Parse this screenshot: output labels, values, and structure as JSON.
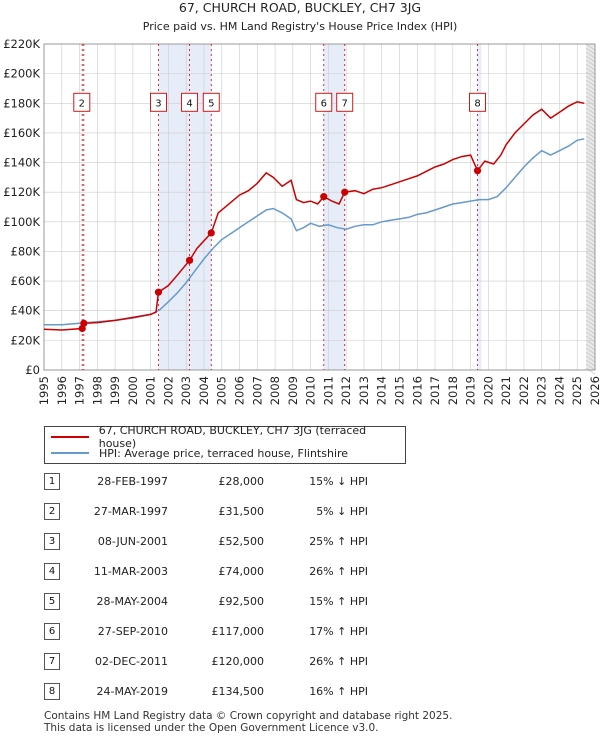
{
  "chart_data": {
    "type": "line",
    "title": "67, CHURCH ROAD, BUCKLEY, CH7 3JG",
    "subtitle": "Price paid vs. HM Land Registry's House Price Index (HPI)",
    "xlim": [
      1995,
      2026
    ],
    "ylim": [
      0,
      220000
    ],
    "y_ticks": [
      0,
      20000,
      40000,
      60000,
      80000,
      100000,
      120000,
      140000,
      160000,
      180000,
      200000,
      220000
    ],
    "y_tick_labels": [
      "£0",
      "£20K",
      "£40K",
      "£60K",
      "£80K",
      "£100K",
      "£120K",
      "£140K",
      "£160K",
      "£180K",
      "£200K",
      "£220K"
    ],
    "x_ticks": [
      1995,
      1996,
      1997,
      1998,
      1999,
      2000,
      2001,
      2002,
      2003,
      2004,
      2005,
      2006,
      2007,
      2008,
      2009,
      2010,
      2011,
      2012,
      2013,
      2014,
      2015,
      2016,
      2017,
      2018,
      2019,
      2020,
      2021,
      2022,
      2023,
      2024,
      2025,
      2026
    ],
    "series": [
      {
        "name": "67, CHURCH ROAD, BUCKLEY, CH7 3JG (terraced house)",
        "color": "#cc0000",
        "points": [
          [
            1995.0,
            27500
          ],
          [
            1996.0,
            27000
          ],
          [
            1997.15,
            28000
          ],
          [
            1997.24,
            31500
          ],
          [
            1998.0,
            32000
          ],
          [
            1999.0,
            33500
          ],
          [
            2000.0,
            35500
          ],
          [
            2001.0,
            37500
          ],
          [
            2001.3,
            39000
          ],
          [
            2001.44,
            52500
          ],
          [
            2002.0,
            57000
          ],
          [
            2002.5,
            64000
          ],
          [
            2003.19,
            74000
          ],
          [
            2003.6,
            82000
          ],
          [
            2004.41,
            92500
          ],
          [
            2004.8,
            106000
          ],
          [
            2005.5,
            113000
          ],
          [
            2006.0,
            118000
          ],
          [
            2006.5,
            121000
          ],
          [
            2007.0,
            126000
          ],
          [
            2007.5,
            133000
          ],
          [
            2007.9,
            130000
          ],
          [
            2008.4,
            124000
          ],
          [
            2008.9,
            128000
          ],
          [
            2009.2,
            115000
          ],
          [
            2009.6,
            113000
          ],
          [
            2010.0,
            114000
          ],
          [
            2010.4,
            112000
          ],
          [
            2010.74,
            117000
          ],
          [
            2011.2,
            114000
          ],
          [
            2011.6,
            112000
          ],
          [
            2011.92,
            120000
          ],
          [
            2012.5,
            121000
          ],
          [
            2013.0,
            119000
          ],
          [
            2013.5,
            122000
          ],
          [
            2014.0,
            123000
          ],
          [
            2014.5,
            125000
          ],
          [
            2015.0,
            127000
          ],
          [
            2015.5,
            129000
          ],
          [
            2016.0,
            131000
          ],
          [
            2016.5,
            134000
          ],
          [
            2017.0,
            137000
          ],
          [
            2017.5,
            139000
          ],
          [
            2018.0,
            142000
          ],
          [
            2018.5,
            144000
          ],
          [
            2019.0,
            145000
          ],
          [
            2019.39,
            134500
          ],
          [
            2019.8,
            141000
          ],
          [
            2020.3,
            139000
          ],
          [
            2020.7,
            145000
          ],
          [
            2021.0,
            152000
          ],
          [
            2021.5,
            160000
          ],
          [
            2022.0,
            166000
          ],
          [
            2022.5,
            172000
          ],
          [
            2023.0,
            176000
          ],
          [
            2023.5,
            170000
          ],
          [
            2024.0,
            174000
          ],
          [
            2024.5,
            178000
          ],
          [
            2025.0,
            181000
          ],
          [
            2025.4,
            180000
          ]
        ]
      },
      {
        "name": "HPI: Average price, terraced house, Flintshire",
        "color": "#6699cc",
        "points": [
          [
            1995.0,
            30500
          ],
          [
            1996.0,
            30500
          ],
          [
            1997.0,
            31500
          ],
          [
            1998.0,
            32500
          ],
          [
            1999.0,
            33500
          ],
          [
            2000.0,
            35000
          ],
          [
            2001.0,
            37500
          ],
          [
            2001.5,
            40500
          ],
          [
            2002.0,
            46000
          ],
          [
            2002.5,
            52000
          ],
          [
            2003.0,
            59000
          ],
          [
            2003.5,
            67000
          ],
          [
            2004.0,
            75000
          ],
          [
            2004.5,
            82000
          ],
          [
            2005.0,
            88000
          ],
          [
            2005.5,
            92000
          ],
          [
            2006.0,
            96000
          ],
          [
            2006.5,
            100000
          ],
          [
            2007.0,
            104000
          ],
          [
            2007.5,
            108000
          ],
          [
            2007.9,
            109000
          ],
          [
            2008.4,
            106000
          ],
          [
            2008.9,
            102000
          ],
          [
            2009.2,
            94000
          ],
          [
            2009.6,
            96000
          ],
          [
            2010.0,
            99000
          ],
          [
            2010.5,
            97000
          ],
          [
            2011.0,
            98000
          ],
          [
            2011.5,
            96000
          ],
          [
            2012.0,
            95000
          ],
          [
            2012.5,
            97000
          ],
          [
            2013.0,
            98000
          ],
          [
            2013.5,
            98000
          ],
          [
            2014.0,
            100000
          ],
          [
            2014.5,
            101000
          ],
          [
            2015.0,
            102000
          ],
          [
            2015.5,
            103000
          ],
          [
            2016.0,
            105000
          ],
          [
            2016.5,
            106000
          ],
          [
            2017.0,
            108000
          ],
          [
            2017.5,
            110000
          ],
          [
            2018.0,
            112000
          ],
          [
            2018.5,
            113000
          ],
          [
            2019.0,
            114000
          ],
          [
            2019.5,
            115000
          ],
          [
            2020.0,
            115000
          ],
          [
            2020.5,
            117000
          ],
          [
            2021.0,
            123000
          ],
          [
            2021.5,
            130000
          ],
          [
            2022.0,
            137000
          ],
          [
            2022.5,
            143000
          ],
          [
            2023.0,
            148000
          ],
          [
            2023.5,
            145000
          ],
          [
            2024.0,
            148000
          ],
          [
            2024.5,
            151000
          ],
          [
            2025.0,
            155000
          ],
          [
            2025.4,
            156000
          ]
        ]
      }
    ],
    "sales": [
      {
        "label": "1",
        "x": 1997.15,
        "price": 28000
      },
      {
        "label": "2",
        "x": 1997.24,
        "price": 31500
      },
      {
        "label": "3",
        "x": 2001.44,
        "price": 52500
      },
      {
        "label": "4",
        "x": 2003.19,
        "price": 74000
      },
      {
        "label": "5",
        "x": 2004.41,
        "price": 92500
      },
      {
        "label": "6",
        "x": 2010.74,
        "price": 117000
      },
      {
        "label": "7",
        "x": 2011.92,
        "price": 120000
      },
      {
        "label": "8",
        "x": 2019.39,
        "price": 134500
      }
    ],
    "marker_boxes": [
      "2",
      "3",
      "4",
      "5",
      "6",
      "7",
      "8"
    ],
    "shaded_periods": [
      [
        2001.44,
        2004.41
      ],
      [
        2010.74,
        2011.92
      ],
      [
        2019.39,
        2019.6
      ]
    ],
    "forecast_start": 2025.5,
    "grid": true
  },
  "legend": {
    "property_label": "67, CHURCH ROAD, BUCKLEY, CH7 3JG (terraced house)",
    "hpi_label": "HPI: Average price, terraced house, Flintshire",
    "property_color": "#cc0000",
    "hpi_color": "#6699cc"
  },
  "table": [
    {
      "num": "1",
      "date": "28-FEB-1997",
      "price": "£28,000",
      "hpi": "15% ↓ HPI"
    },
    {
      "num": "2",
      "date": "27-MAR-1997",
      "price": "£31,500",
      "hpi": "5% ↓ HPI"
    },
    {
      "num": "3",
      "date": "08-JUN-2001",
      "price": "£52,500",
      "hpi": "25% ↑ HPI"
    },
    {
      "num": "4",
      "date": "11-MAR-2003",
      "price": "£74,000",
      "hpi": "26% ↑ HPI"
    },
    {
      "num": "5",
      "date": "28-MAY-2004",
      "price": "£92,500",
      "hpi": "15% ↑ HPI"
    },
    {
      "num": "6",
      "date": "27-SEP-2010",
      "price": "£117,000",
      "hpi": "17% ↑ HPI"
    },
    {
      "num": "7",
      "date": "02-DEC-2011",
      "price": "£120,000",
      "hpi": "26% ↑ HPI"
    },
    {
      "num": "8",
      "date": "24-MAY-2019",
      "price": "£134,500",
      "hpi": "16% ↑ HPI"
    }
  ],
  "footer": {
    "line1": "Contains HM Land Registry data © Crown copyright and database right 2025.",
    "line2": "This data is licensed under the Open Government Licence v3.0."
  }
}
